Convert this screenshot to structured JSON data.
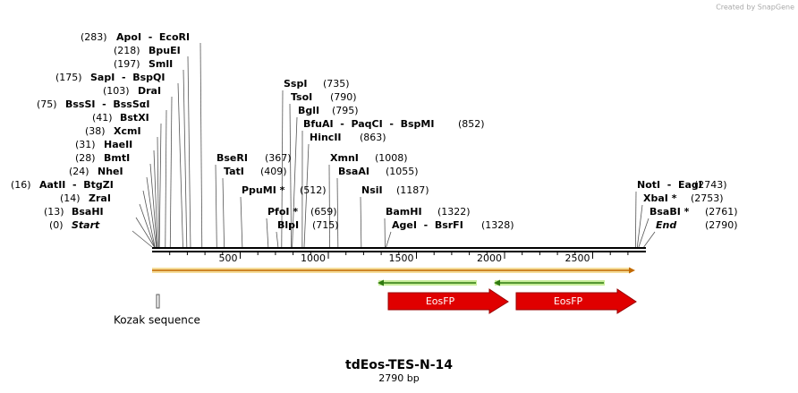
{
  "header": {
    "credit": "Created by SnapGene"
  },
  "title": "tdEos-TES-N-14",
  "length_label": "2790 bp",
  "sites": [
    {
      "name": "ApoI  -  EcoRI",
      "position": {
        "value": 283,
        "label": "(283)"
      }
    },
    {
      "name": "BpuEI",
      "position": {
        "value": 218,
        "label": "(218)"
      }
    },
    {
      "name": "SmlI",
      "position": {
        "value": 197,
        "label": "(197)"
      }
    },
    {
      "name": "SapI  -  BspQI",
      "position": {
        "value": 175,
        "label": "(175)"
      }
    },
    {
      "name": "DraI",
      "position": {
        "value": 103,
        "label": "(103)"
      }
    },
    {
      "name": "BssSI  -  BssSαI",
      "position": {
        "value": 75,
        "label": "(75)"
      }
    },
    {
      "name": "BstXI",
      "position": {
        "value": 41,
        "label": "(41)"
      }
    },
    {
      "name": "XcmI",
      "position": {
        "value": 38,
        "label": "(38)"
      }
    },
    {
      "name": "HaeII",
      "position": {
        "value": 31,
        "label": "(31)"
      }
    },
    {
      "name": "BmtI",
      "position": {
        "value": 28,
        "label": "(28)"
      }
    },
    {
      "name": "NheI",
      "position": {
        "value": 24,
        "label": "(24)"
      }
    },
    {
      "name": "AatII  -  BtgZI",
      "position": {
        "value": 16,
        "label": "(16)"
      }
    },
    {
      "name": "ZraI",
      "position": {
        "value": 14,
        "label": "(14)"
      }
    },
    {
      "name": "BsaHI",
      "position": {
        "value": 13,
        "label": "(13)"
      }
    },
    {
      "name": "Start",
      "position": {
        "value": 0,
        "label": "(0)"
      }
    },
    {
      "name": "SspI",
      "position": {
        "value": 735,
        "label": "(735)"
      }
    },
    {
      "name": "TsoI",
      "position": {
        "value": 790,
        "label": "(790)"
      }
    },
    {
      "name": "BglI",
      "position": {
        "value": 795,
        "label": "(795)"
      }
    },
    {
      "name": "BfuAI  -  PaqCI  -  BspMI",
      "position": {
        "value": 852,
        "label": "(852)"
      }
    },
    {
      "name": "HincII",
      "position": {
        "value": 863,
        "label": "(863)"
      }
    },
    {
      "name": "BseRI",
      "position": {
        "value": 367,
        "label": "(367)"
      }
    },
    {
      "name": "TatI",
      "position": {
        "value": 409,
        "label": "(409)"
      }
    },
    {
      "name": "XmnI",
      "position": {
        "value": 1008,
        "label": "(1008)"
      }
    },
    {
      "name": "BsaAI",
      "position": {
        "value": 1055,
        "label": "(1055)"
      }
    },
    {
      "name": "PpuMI *",
      "position": {
        "value": 512,
        "label": "(512)"
      }
    },
    {
      "name": "NsiI",
      "position": {
        "value": 1187,
        "label": "(1187)"
      }
    },
    {
      "name": "PfoI *",
      "position": {
        "value": 659,
        "label": "(659)"
      }
    },
    {
      "name": "BamHI",
      "position": {
        "value": 1322,
        "label": "(1322)"
      }
    },
    {
      "name": "BlpI",
      "position": {
        "value": 715,
        "label": "(715)"
      }
    },
    {
      "name": "AgeI  -  BsrFI",
      "position": {
        "value": 1328,
        "label": "(1328)"
      }
    },
    {
      "name": "NotI  -  EagI",
      "position": {
        "value": 2743,
        "label": "(2743)"
      }
    },
    {
      "name": "XbaI *",
      "position": {
        "value": 2753,
        "label": "(2753)"
      }
    },
    {
      "name": "BsaBI *",
      "position": {
        "value": 2761,
        "label": "(2761)"
      }
    },
    {
      "name": "End",
      "position": {
        "value": 2790,
        "label": "(2790)"
      }
    }
  ],
  "ruler_ticks": [
    500,
    1000,
    1500,
    2000,
    2500
  ],
  "features": [
    {
      "label": "EosFP"
    },
    {
      "label": "EosFP"
    },
    {
      "label": "Kozak sequence"
    }
  ]
}
